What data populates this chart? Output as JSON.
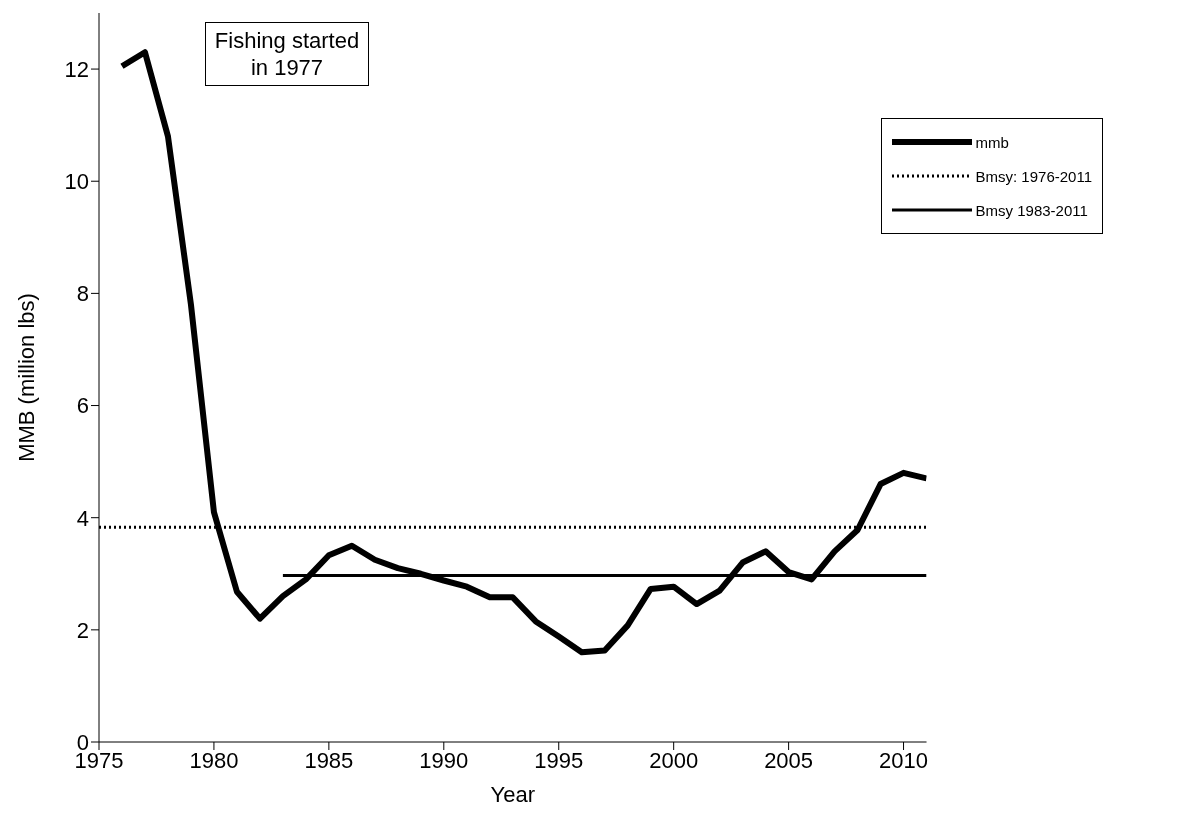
{
  "chart_data": {
    "type": "line",
    "xlabel": "Year",
    "ylabel": "MMB (million lbs)",
    "xlim": [
      1975,
      2011
    ],
    "xticks": [
      1975,
      1980,
      1985,
      1990,
      1995,
      2000,
      2005,
      2010
    ],
    "ylim": [
      0,
      13
    ],
    "yticks": [
      0,
      2,
      4,
      6,
      8,
      10,
      12
    ],
    "grid": false,
    "legend": "top right",
    "marker": "none",
    "annotations": [
      "Fishing started in 1977"
    ],
    "series": [
      {
        "name": "mmb",
        "color": "#000000",
        "line_style": "solid",
        "x": [
          1976,
          1977,
          1978,
          1979,
          1980,
          1981,
          1982,
          1983,
          1984,
          1985,
          1986,
          1987,
          1988,
          1989,
          1990,
          1991,
          1992,
          1993,
          1994,
          1995,
          1996,
          1997,
          1998,
          1999,
          2000,
          2001,
          2002,
          2003,
          2004,
          2005,
          2006,
          2007,
          2008,
          2009,
          2010,
          2011
        ],
        "values": [
          12.05,
          12.3,
          10.8,
          7.8,
          4.1,
          2.68,
          2.2,
          2.6,
          2.9,
          3.33,
          3.5,
          3.25,
          3.1,
          3.0,
          2.88,
          2.77,
          2.58,
          2.58,
          2.15,
          1.88,
          1.6,
          1.63,
          2.08,
          2.73,
          2.77,
          2.46,
          2.7,
          3.2,
          3.4,
          3.03,
          2.9,
          3.4,
          3.78,
          4.6,
          4.8,
          4.7
        ]
      },
      {
        "name": "Bmsy: 1976-2011",
        "color": "#000000",
        "line_style": "dotted",
        "x": [
          1975,
          2011
        ],
        "values": [
          3.83,
          3.83
        ]
      },
      {
        "name": "Bmsy 1983-2011",
        "color": "#000000",
        "line_style": "solid",
        "x": [
          1983,
          2011
        ],
        "values": [
          2.97,
          2.97
        ]
      }
    ]
  }
}
